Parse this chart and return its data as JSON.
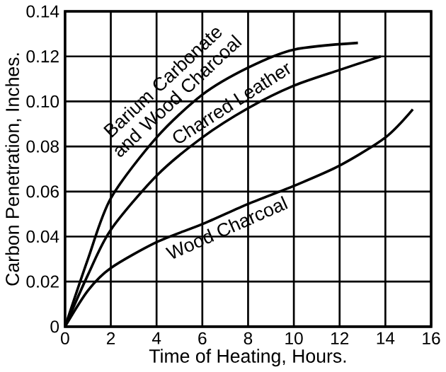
{
  "chart_data": {
    "type": "line",
    "xlabel": "Time of Heating, Hours.",
    "ylabel": "Carbon Penetration, Inches.",
    "xlim": [
      0,
      16
    ],
    "xticks": [
      0,
      2,
      4,
      6,
      8,
      10,
      12,
      14,
      16
    ],
    "ylim": [
      0,
      0.14
    ],
    "yticks": [
      0,
      0.02,
      0.04,
      0.06,
      0.08,
      {
        "value": 0.1,
        "label": "0.10"
      },
      0.12,
      0.14
    ],
    "grid": true,
    "marker": "none",
    "line_style": "solid",
    "series": [
      {
        "name": "Barium Carbonate and Wood Charcoal",
        "color": "#000000",
        "x": [
          0,
          1,
          2,
          4,
          6,
          8,
          10,
          12.8
        ],
        "values": [
          0,
          0.03,
          0.057,
          0.084,
          0.103,
          0.115,
          0.123,
          0.126
        ]
      },
      {
        "name": "Charred Leather",
        "color": "#000000",
        "x": [
          0,
          1,
          2,
          4,
          6,
          8,
          10,
          12,
          13.8
        ],
        "values": [
          0,
          0.023,
          0.043,
          0.067,
          0.084,
          0.097,
          0.107,
          0.114,
          0.12
        ]
      },
      {
        "name": "Wood Charcoal",
        "color": "#000000",
        "x": [
          0,
          1,
          2,
          4,
          6,
          8,
          10,
          12,
          14,
          15.2
        ],
        "values": [
          0,
          0.016,
          0.026,
          0.0375,
          0.0455,
          0.0545,
          0.0625,
          0.0715,
          0.084,
          0.0965
        ]
      }
    ]
  }
}
